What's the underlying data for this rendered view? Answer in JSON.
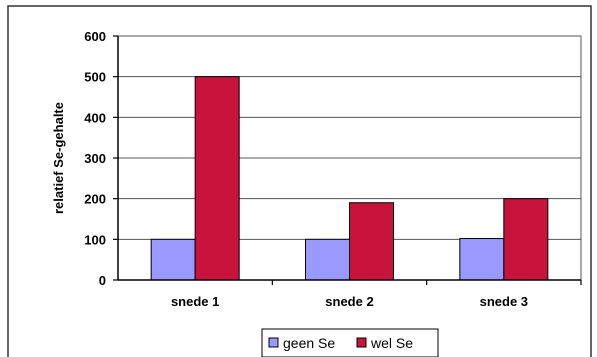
{
  "chart_data": {
    "type": "bar",
    "title": "",
    "xlabel": "",
    "ylabel": "relatief Se-gehalte",
    "categories": [
      "snede 1",
      "snede 2",
      "snede 3"
    ],
    "ylim": [
      0,
      600
    ],
    "yticks": [
      0,
      100,
      200,
      300,
      400,
      500,
      600
    ],
    "grid": true,
    "legend_position": "bottom",
    "series": [
      {
        "name": "geen Se",
        "values": [
          100,
          100,
          102
        ],
        "color": "#9999ff"
      },
      {
        "name": "wel Se",
        "values": [
          500,
          190,
          200
        ],
        "color": "#c8143c"
      }
    ]
  }
}
